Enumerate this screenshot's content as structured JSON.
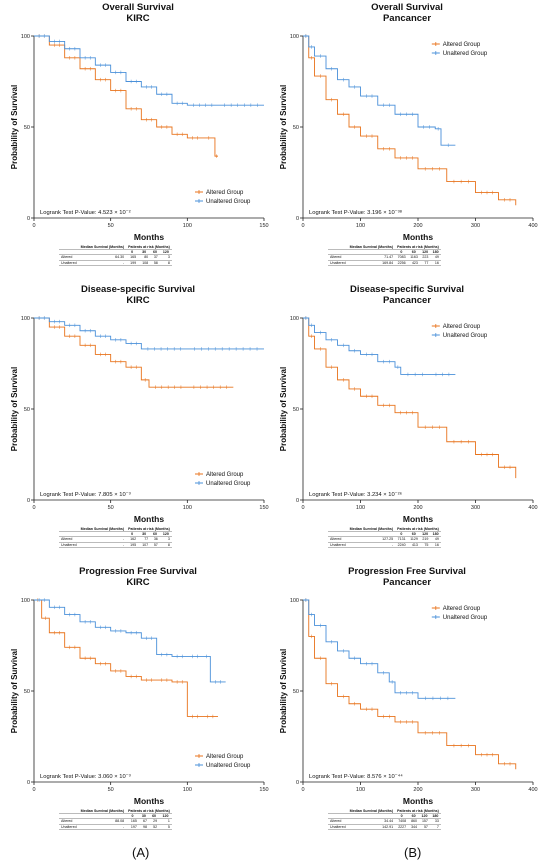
{
  "colors": {
    "altered": "#E8731C",
    "unaltered": "#4A90D9",
    "axis": "#222222"
  },
  "common": {
    "xlabel": "Months",
    "ylabel": "Probability of Survival",
    "legend_altered": "Altered Group",
    "legend_unaltered": "Unaltered Group",
    "risk_header_median": "Median Survival (Months)",
    "risk_header_patients": "Patients at risk (Months)",
    "row_altered": "Altered",
    "row_unaltered": "Unaltered"
  },
  "figure_labels": {
    "a": "(A)",
    "b": "(B)"
  },
  "panels": [
    {
      "id": "os-kirc",
      "title1": "Overall Survival",
      "title2": "KIRC",
      "xmax": 150,
      "xticks": [
        0,
        50,
        100,
        150
      ],
      "legend_pos": "bottom-right",
      "pvalue": "Logrank Test P-Value: 4.523 × 10⁻²",
      "risk_times": [
        "0",
        "30",
        "60",
        "120"
      ],
      "risk_rows": [
        {
          "median": "64.30",
          "counts": [
            "165",
            "80",
            "37",
            "3"
          ]
        },
        {
          "median": "-",
          "counts": [
            "199",
            "108",
            "58",
            "8"
          ]
        }
      ]
    },
    {
      "id": "os-pan",
      "title1": "Overall Survival",
      "title2": "Pancancer",
      "xmax": 400,
      "xticks": [
        0,
        100,
        200,
        300,
        400
      ],
      "legend_pos": "top-right",
      "pvalue": "Logrank Test P-Value: 3.196 × 10⁻³⁸",
      "risk_times": [
        "0",
        "60",
        "120",
        "180"
      ],
      "risk_rows": [
        {
          "median": "71.47",
          "counts": [
            "7083",
            "1163",
            "223",
            "49"
          ]
        },
        {
          "median": "169.84",
          "counts": [
            "2256",
            "423",
            "77",
            "16"
          ]
        }
      ]
    },
    {
      "id": "dss-kirc",
      "title1": "Disease-specific Survival",
      "title2": "KIRC",
      "xmax": 150,
      "xticks": [
        0,
        50,
        100,
        150
      ],
      "legend_pos": "bottom-right",
      "pvalue": "Logrank Test P-Value: 7.805 × 10⁻³",
      "risk_times": [
        "0",
        "30",
        "60",
        "120"
      ],
      "risk_rows": [
        {
          "median": "-",
          "counts": [
            "162",
            "77",
            "36",
            "3"
          ]
        },
        {
          "median": "-",
          "counts": [
            "195",
            "107",
            "57",
            "8"
          ]
        }
      ]
    },
    {
      "id": "dss-pan",
      "title1": "Disease-specific Survival",
      "title2": "Pancancer",
      "xmax": 400,
      "xticks": [
        0,
        100,
        200,
        300,
        400
      ],
      "legend_pos": "top-right",
      "pvalue": "Logrank Test P-Value: 3.234 × 10⁻²⁶",
      "risk_times": [
        "0",
        "60",
        "120",
        "180"
      ],
      "risk_rows": [
        {
          "median": "127.25",
          "counts": [
            "7131",
            "1129",
            "219",
            "49"
          ]
        },
        {
          "median": "-",
          "counts": [
            "2240",
            "413",
            "75",
            "16"
          ]
        }
      ]
    },
    {
      "id": "pfs-kirc",
      "title1": "Progression Free Survival",
      "title2": "KIRC",
      "xmax": 150,
      "xticks": [
        0,
        50,
        100,
        150
      ],
      "legend_pos": "bottom-right",
      "pvalue": "Logrank Test P-Value: 3.060 × 10⁻³",
      "risk_times": [
        "0",
        "30",
        "60",
        "120"
      ],
      "risk_rows": [
        {
          "median": "88.08",
          "counts": [
            "165",
            "67",
            "29",
            "1"
          ]
        },
        {
          "median": "-",
          "counts": [
            "197",
            "98",
            "52",
            "5"
          ]
        }
      ]
    },
    {
      "id": "pfs-pan",
      "title1": "Progression Free Survival",
      "title2": "Pancancer",
      "xmax": 400,
      "xticks": [
        0,
        100,
        200,
        300,
        400
      ],
      "legend_pos": "top-right",
      "pvalue": "Logrank Test P-Value: 8.576 × 10⁻⁴⁴",
      "risk_times": [
        "0",
        "60",
        "120",
        "180"
      ],
      "risk_rows": [
        {
          "median": "34.44",
          "counts": [
            "7408",
            "860",
            "157",
            "33"
          ]
        },
        {
          "median": "142.91",
          "counts": [
            "2227",
            "344",
            "57",
            "7"
          ]
        }
      ]
    }
  ],
  "chart_data": [
    {
      "type": "line",
      "title": "Overall Survival",
      "subtitle": "KIRC",
      "xlabel": "Months",
      "ylabel": "Probability of Survival",
      "xlim": [
        0,
        150
      ],
      "ylim": [
        0,
        100
      ],
      "yticks": [
        0,
        50,
        100
      ],
      "legend": "bottom-right",
      "series": [
        {
          "name": "Altered Group",
          "x": [
            0,
            10,
            20,
            30,
            40,
            50,
            60,
            70,
            80,
            90,
            100,
            110,
            118,
            120
          ],
          "y": [
            100,
            95,
            88,
            82,
            76,
            70,
            60,
            54,
            50,
            46,
            44,
            44,
            34,
            34
          ]
        },
        {
          "name": "Unaltered Group",
          "x": [
            0,
            10,
            20,
            30,
            40,
            50,
            60,
            70,
            80,
            90,
            100,
            120,
            150
          ],
          "y": [
            100,
            97,
            93,
            88,
            84,
            80,
            75,
            72,
            68,
            63,
            62,
            62,
            62
          ]
        }
      ]
    },
    {
      "type": "line",
      "title": "Overall Survival",
      "subtitle": "Pancancer",
      "xlabel": "Months",
      "ylabel": "Probability of Survival",
      "xlim": [
        0,
        400
      ],
      "ylim": [
        0,
        100
      ],
      "yticks": [
        0,
        50,
        100
      ],
      "legend": "top-right",
      "series": [
        {
          "name": "Altered Group",
          "x": [
            0,
            10,
            20,
            40,
            60,
            80,
            100,
            130,
            160,
            200,
            250,
            300,
            340,
            370
          ],
          "y": [
            100,
            88,
            78,
            65,
            57,
            50,
            45,
            38,
            33,
            27,
            20,
            14,
            10,
            7
          ]
        },
        {
          "name": "Unaltered Group",
          "x": [
            0,
            10,
            20,
            40,
            60,
            80,
            100,
            130,
            160,
            200,
            230,
            240,
            265
          ],
          "y": [
            100,
            94,
            89,
            82,
            76,
            72,
            67,
            62,
            57,
            50,
            49,
            40,
            40
          ]
        }
      ]
    },
    {
      "type": "line",
      "title": "Disease-specific Survival",
      "subtitle": "KIRC",
      "xlabel": "Months",
      "ylabel": "Probability of Survival",
      "xlim": [
        0,
        150
      ],
      "ylim": [
        0,
        100
      ],
      "yticks": [
        0,
        50,
        100
      ],
      "legend": "bottom-right",
      "series": [
        {
          "name": "Altered Group",
          "x": [
            0,
            10,
            20,
            30,
            40,
            50,
            60,
            70,
            75,
            100,
            130
          ],
          "y": [
            100,
            95,
            90,
            85,
            80,
            76,
            73,
            66,
            62,
            62,
            62
          ]
        },
        {
          "name": "Unaltered Group",
          "x": [
            0,
            10,
            20,
            30,
            40,
            50,
            60,
            70,
            100,
            150
          ],
          "y": [
            100,
            98,
            96,
            93,
            90,
            88,
            86,
            83,
            83,
            83
          ]
        }
      ]
    },
    {
      "type": "line",
      "title": "Disease-specific Survival",
      "subtitle": "Pancancer",
      "xlabel": "Months",
      "ylabel": "Probability of Survival",
      "xlim": [
        0,
        400
      ],
      "ylim": [
        0,
        100
      ],
      "yticks": [
        0,
        50,
        100
      ],
      "legend": "top-right",
      "series": [
        {
          "name": "Altered Group",
          "x": [
            0,
            10,
            20,
            40,
            60,
            80,
            100,
            130,
            160,
            200,
            250,
            300,
            340,
            370
          ],
          "y": [
            100,
            90,
            83,
            73,
            66,
            61,
            57,
            52,
            48,
            40,
            32,
            25,
            18,
            12
          ]
        },
        {
          "name": "Unaltered Group",
          "x": [
            0,
            10,
            20,
            40,
            60,
            80,
            100,
            130,
            160,
            170,
            220,
            265
          ],
          "y": [
            100,
            96,
            92,
            88,
            85,
            82,
            80,
            76,
            73,
            69,
            69,
            69
          ]
        }
      ]
    },
    {
      "type": "line",
      "title": "Progression Free Survival",
      "subtitle": "KIRC",
      "xlabel": "Months",
      "ylabel": "Probability of Survival",
      "xlim": [
        0,
        150
      ],
      "ylim": [
        0,
        100
      ],
      "yticks": [
        0,
        50,
        100
      ],
      "legend": "bottom-right",
      "series": [
        {
          "name": "Altered Group",
          "x": [
            0,
            5,
            10,
            20,
            30,
            40,
            50,
            60,
            70,
            80,
            90,
            100,
            110,
            120
          ],
          "y": [
            100,
            90,
            82,
            74,
            68,
            65,
            61,
            58,
            56,
            56,
            55,
            36,
            36,
            36
          ]
        },
        {
          "name": "Unaltered Group",
          "x": [
            0,
            10,
            20,
            30,
            40,
            50,
            60,
            70,
            80,
            90,
            100,
            110,
            115,
            125
          ],
          "y": [
            100,
            96,
            92,
            88,
            85,
            83,
            82,
            79,
            70,
            69,
            69,
            69,
            55,
            55
          ]
        }
      ]
    },
    {
      "type": "line",
      "title": "Progression Free Survival",
      "subtitle": "Pancancer",
      "xlabel": "Months",
      "ylabel": "Probability of Survival",
      "xlim": [
        0,
        400
      ],
      "ylim": [
        0,
        100
      ],
      "yticks": [
        0,
        50,
        100
      ],
      "legend": "top-right",
      "series": [
        {
          "name": "Altered Group",
          "x": [
            0,
            10,
            20,
            40,
            60,
            80,
            100,
            130,
            160,
            200,
            250,
            300,
            340,
            370
          ],
          "y": [
            100,
            80,
            68,
            54,
            47,
            43,
            40,
            36,
            33,
            27,
            20,
            15,
            10,
            7
          ]
        },
        {
          "name": "Unaltered Group",
          "x": [
            0,
            10,
            20,
            40,
            60,
            80,
            100,
            130,
            150,
            160,
            200,
            265
          ],
          "y": [
            100,
            92,
            86,
            77,
            72,
            68,
            65,
            60,
            55,
            49,
            46,
            46
          ]
        }
      ]
    }
  ]
}
